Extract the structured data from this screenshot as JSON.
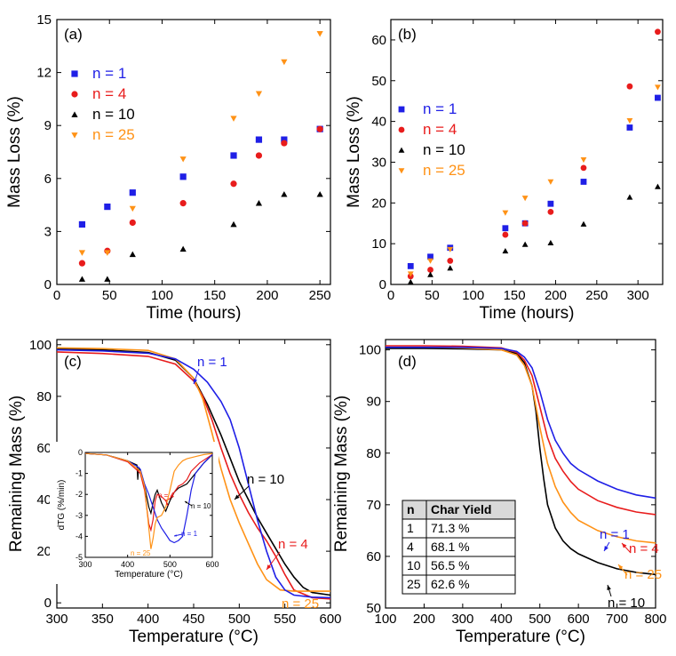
{
  "colors": {
    "n1": "#1f1fe6",
    "n4": "#e81c1c",
    "n10": "#000000",
    "n25": "#ff9216"
  },
  "chart_data": [
    {
      "type": "scatter",
      "panel_label": "(a)",
      "xlabel": "Time (hours)",
      "ylabel": "Mass Loss (%)",
      "xlim": [
        0,
        260
      ],
      "ylim": [
        0,
        15
      ],
      "xticks": [
        0,
        50,
        100,
        150,
        200,
        250
      ],
      "yticks": [
        0,
        3,
        6,
        9,
        12,
        15
      ],
      "legend": "top-left",
      "series": [
        {
          "name": "n = 1",
          "marker": "square",
          "x": [
            24,
            48,
            72,
            120,
            168,
            192,
            216,
            250
          ],
          "y": [
            3.4,
            4.4,
            5.2,
            6.1,
            7.3,
            8.2,
            8.2,
            8.8
          ]
        },
        {
          "name": "n = 4",
          "marker": "circle",
          "x": [
            24,
            48,
            72,
            120,
            168,
            192,
            216,
            250
          ],
          "y": [
            1.2,
            1.9,
            3.5,
            4.6,
            5.7,
            7.3,
            8.0,
            8.8
          ]
        },
        {
          "name": "n = 10",
          "marker": "triangle-up",
          "x": [
            24,
            48,
            72,
            120,
            168,
            192,
            216,
            250
          ],
          "y": [
            0.3,
            0.3,
            1.7,
            2.0,
            3.4,
            4.6,
            5.1,
            5.1
          ]
        },
        {
          "name": "n = 25",
          "marker": "triangle-down",
          "x": [
            24,
            48,
            72,
            120,
            168,
            192,
            216,
            250
          ],
          "y": [
            1.8,
            1.8,
            4.3,
            7.1,
            9.4,
            10.8,
            12.6,
            14.2
          ]
        }
      ]
    },
    {
      "type": "scatter",
      "panel_label": "(b)",
      "xlabel": "Time (hours)",
      "ylabel": "Mass Loss (%)",
      "xlim": [
        0,
        330
      ],
      "ylim": [
        0,
        65
      ],
      "xticks": [
        0,
        50,
        100,
        150,
        200,
        250,
        300
      ],
      "yticks": [
        0,
        10,
        20,
        30,
        40,
        50,
        60
      ],
      "legend": "top-left",
      "series": [
        {
          "name": "n = 1",
          "marker": "square",
          "x": [
            24,
            48,
            72,
            139,
            163,
            194,
            234,
            290,
            324
          ],
          "y": [
            4.5,
            6.8,
            9.0,
            13.8,
            15.0,
            19.8,
            25.2,
            38.5,
            45.8
          ]
        },
        {
          "name": "n = 4",
          "marker": "circle",
          "x": [
            24,
            48,
            72,
            139,
            163,
            194,
            234,
            290,
            324
          ],
          "y": [
            2.0,
            3.6,
            5.8,
            12.2,
            15.0,
            17.8,
            28.6,
            48.6,
            62.0
          ]
        },
        {
          "name": "n = 10",
          "marker": "triangle-up",
          "x": [
            24,
            48,
            72,
            139,
            163,
            194,
            234,
            290,
            324
          ],
          "y": [
            0.6,
            2.4,
            4.0,
            8.2,
            9.8,
            10.2,
            14.8,
            21.4,
            24.0
          ]
        },
        {
          "name": "n = 25",
          "marker": "triangle-down",
          "x": [
            24,
            48,
            72,
            139,
            163,
            194,
            234,
            290,
            324
          ],
          "y": [
            2.6,
            5.8,
            8.6,
            17.6,
            21.2,
            25.2,
            30.6,
            40.2,
            48.4
          ]
        }
      ]
    },
    {
      "type": "line",
      "panel_label": "(c)",
      "xlabel": "Temperature (°C)",
      "ylabel": "Remaining Mass (%)",
      "xlim": [
        300,
        600
      ],
      "ylim": [
        -2,
        102
      ],
      "xticks": [
        300,
        350,
        400,
        450,
        500,
        550,
        600
      ],
      "yticks": [
        0,
        20,
        40,
        60,
        80,
        100
      ],
      "annotations": [
        "n = 1",
        "n = 10",
        "n = 4",
        "n = 25"
      ],
      "series": [
        {
          "name": "n = 1",
          "x": [
            300,
            350,
            400,
            430,
            450,
            465,
            480,
            490,
            500,
            510,
            520,
            530,
            540,
            550,
            560,
            580,
            600
          ],
          "y": [
            98.0,
            97.6,
            96.7,
            94.5,
            90.5,
            85.5,
            78.0,
            71.0,
            60.0,
            46.0,
            32.0,
            20.0,
            10.0,
            5.0,
            3.0,
            2.2,
            2.0
          ]
        },
        {
          "name": "n = 4",
          "x": [
            300,
            350,
            400,
            430,
            450,
            460,
            470,
            480,
            490,
            500,
            510,
            520,
            530,
            540,
            550,
            560,
            580,
            600
          ],
          "y": [
            97.2,
            96.6,
            95.5,
            92.5,
            86.0,
            80.0,
            71.0,
            60.0,
            50.0,
            42.0,
            35.0,
            29.0,
            24.0,
            18.0,
            11.0,
            5.0,
            2.0,
            1.5
          ]
        },
        {
          "name": "n = 10",
          "x": [
            300,
            350,
            400,
            430,
            450,
            465,
            480,
            490,
            500,
            510,
            520,
            530,
            540,
            550,
            560,
            570,
            580,
            600
          ],
          "y": [
            98.5,
            98.0,
            97.0,
            94.0,
            87.0,
            77.0,
            65.0,
            56.0,
            47.0,
            40.0,
            33.0,
            27.0,
            21.0,
            15.0,
            10.0,
            6.0,
            4.0,
            3.0
          ]
        },
        {
          "name": "n = 25",
          "x": [
            300,
            350,
            400,
            430,
            450,
            460,
            470,
            480,
            490,
            500,
            510,
            520,
            530,
            545,
            560,
            600
          ],
          "y": [
            98.8,
            98.5,
            97.8,
            94.5,
            87.0,
            79.0,
            66.0,
            52.0,
            40.0,
            31.0,
            23.0,
            15.0,
            9.0,
            5.0,
            4.5,
            4.5
          ]
        }
      ]
    },
    {
      "type": "line",
      "panel_label": "inset",
      "xlabel": "Temperature (°C)",
      "ylabel": "dTG (%/min)",
      "xlim": [
        300,
        600
      ],
      "ylim": [
        -5,
        0
      ],
      "xticks": [
        300,
        400,
        500,
        600
      ],
      "yticks": [
        0,
        -1,
        -2,
        -3,
        -4,
        -5
      ],
      "annotations": [
        "n = 4",
        "n = 10",
        "n = 25",
        "n = 1"
      ],
      "series": [
        {
          "name": "n = 1",
          "x": [
            300,
            350,
            400,
            425,
            430,
            440,
            450,
            460,
            470,
            480,
            490,
            500,
            510,
            520,
            530,
            540,
            550,
            560,
            580,
            600
          ],
          "y": [
            -0.05,
            -0.12,
            -0.4,
            -0.7,
            -0.8,
            -1.5,
            -2.0,
            -2.6,
            -3.2,
            -3.6,
            -3.9,
            -4.2,
            -4.3,
            -4.2,
            -4.0,
            -3.0,
            -1.8,
            -1.0,
            -0.5,
            -0.1
          ]
        },
        {
          "name": "n = 4",
          "x": [
            300,
            350,
            400,
            425,
            430,
            440,
            450,
            455,
            460,
            465,
            470,
            480,
            490,
            500,
            510,
            520,
            530,
            540,
            550,
            570,
            600
          ],
          "y": [
            -0.05,
            -0.12,
            -0.45,
            -0.9,
            -1.0,
            -1.8,
            -3.4,
            -3.7,
            -3.2,
            -2.3,
            -2.0,
            -2.1,
            -2.3,
            -2.2,
            -1.9,
            -1.6,
            -1.5,
            -1.3,
            -0.9,
            -0.5,
            -0.1
          ]
        },
        {
          "name": "n = 10",
          "x": [
            300,
            350,
            400,
            422,
            424,
            426,
            430,
            440,
            450,
            455,
            460,
            465,
            470,
            480,
            490,
            500,
            510,
            520,
            530,
            540,
            560,
            580,
            600
          ],
          "y": [
            -0.05,
            -0.12,
            -0.4,
            -0.6,
            -1.3,
            -0.7,
            -0.9,
            -1.6,
            -2.6,
            -2.9,
            -2.4,
            -2.0,
            -1.8,
            -2.4,
            -2.8,
            -2.3,
            -1.9,
            -1.7,
            -1.6,
            -1.5,
            -1.0,
            -0.5,
            -0.1
          ]
        },
        {
          "name": "n = 25",
          "x": [
            300,
            350,
            400,
            430,
            440,
            450,
            455,
            460,
            465,
            470,
            480,
            490,
            500,
            510,
            520,
            530,
            540,
            560,
            580,
            600
          ],
          "y": [
            -0.05,
            -0.12,
            -0.4,
            -0.9,
            -1.6,
            -3.6,
            -4.6,
            -4.1,
            -3.4,
            -3.1,
            -3.0,
            -2.6,
            -1.8,
            -0.9,
            -0.6,
            -0.4,
            -0.3,
            -0.2,
            -0.1,
            -0.05
          ]
        }
      ]
    },
    {
      "type": "line",
      "panel_label": "(d)",
      "xlabel": "Temperature (°C)",
      "ylabel": "Remaining Mass (%)",
      "xlim": [
        100,
        800
      ],
      "ylim": [
        50,
        102
      ],
      "xticks": [
        100,
        200,
        300,
        400,
        500,
        600,
        700,
        800
      ],
      "yticks": [
        50,
        60,
        70,
        80,
        90,
        100
      ],
      "annotations": [
        "n = 1",
        "n = 4",
        "n = 25",
        "n = 10"
      ],
      "series": [
        {
          "name": "n = 1",
          "x": [
            100,
            200,
            300,
            400,
            440,
            460,
            480,
            500,
            520,
            540,
            560,
            580,
            600,
            650,
            700,
            750,
            800
          ],
          "y": [
            100.5,
            100.5,
            100.5,
            100.3,
            99.7,
            98.6,
            96.5,
            92.0,
            86.5,
            82.5,
            80.0,
            78.0,
            76.8,
            74.6,
            73.0,
            71.9,
            71.3
          ]
        },
        {
          "name": "n = 4",
          "x": [
            100,
            200,
            300,
            400,
            440,
            460,
            480,
            500,
            520,
            540,
            560,
            580,
            600,
            650,
            700,
            750,
            800
          ],
          "y": [
            100.8,
            100.8,
            100.7,
            100.4,
            99.5,
            98.0,
            95.0,
            89.0,
            83.0,
            79.0,
            76.5,
            74.5,
            73.0,
            70.8,
            69.5,
            68.6,
            68.1
          ]
        },
        {
          "name": "n = 10",
          "x": [
            100,
            200,
            300,
            400,
            440,
            460,
            480,
            490,
            500,
            510,
            520,
            540,
            560,
            580,
            600,
            650,
            700,
            750,
            800
          ],
          "y": [
            100.3,
            100.3,
            100.2,
            100.0,
            99.3,
            97.5,
            93.0,
            88.0,
            81.0,
            75.0,
            70.0,
            65.5,
            63.0,
            61.5,
            60.5,
            58.8,
            57.6,
            56.9,
            56.5
          ]
        },
        {
          "name": "n = 25",
          "x": [
            100,
            200,
            300,
            400,
            440,
            460,
            480,
            500,
            520,
            540,
            560,
            580,
            600,
            650,
            700,
            750,
            800
          ],
          "y": [
            100.5,
            100.5,
            100.4,
            100.0,
            99.0,
            97.0,
            93.0,
            85.0,
            78.0,
            73.5,
            70.5,
            68.5,
            67.0,
            65.0,
            63.8,
            63.0,
            62.6
          ]
        }
      ],
      "table": {
        "headers": [
          "n",
          "Char Yield"
        ],
        "rows": [
          [
            "1",
            "71.3 %"
          ],
          [
            "4",
            "68.1 %"
          ],
          [
            "10",
            "56.5 %"
          ],
          [
            "25",
            "62.6 %"
          ]
        ]
      }
    }
  ]
}
